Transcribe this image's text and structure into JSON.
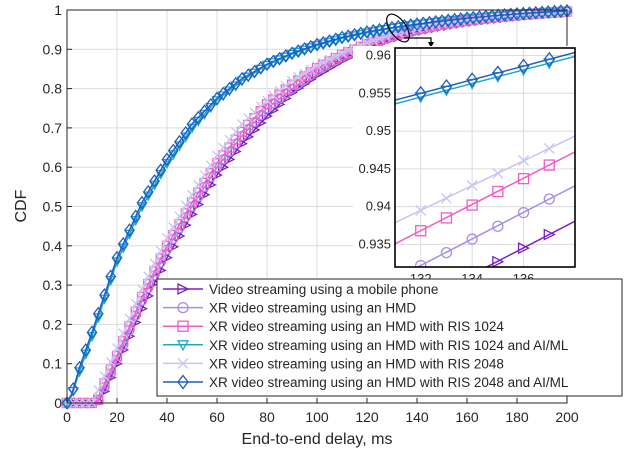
{
  "chart_data": [
    {
      "type": "line",
      "xlabel": "End-to-end delay, ms",
      "ylabel": "CDF",
      "xlim": [
        0,
        200
      ],
      "ylim": [
        0,
        1
      ],
      "xticks": [
        "0",
        "20",
        "40",
        "60",
        "80",
        "100",
        "120",
        "140",
        "160",
        "180",
        "200"
      ],
      "yticks": [
        "0",
        "0.1",
        "0.2",
        "0.3",
        "0.4",
        "0.5",
        "0.6",
        "0.7",
        "0.8",
        "0.9",
        "1"
      ],
      "grid": true,
      "legend_position": "bottom-right",
      "series": [
        {
          "name": "Video streaming using a mobile phone",
          "color": "#7b1fc9",
          "marker": "triangle-right",
          "x": [
            0,
            12,
            15,
            20,
            30,
            40,
            50,
            60,
            70,
            80,
            90,
            100,
            110,
            120,
            130,
            140,
            150,
            160,
            170,
            180,
            190,
            200
          ],
          "y": [
            0,
            0,
            0.03,
            0.1,
            0.24,
            0.37,
            0.48,
            0.58,
            0.66,
            0.73,
            0.79,
            0.835,
            0.872,
            0.903,
            0.927,
            0.945,
            0.958,
            0.969,
            0.977,
            0.984,
            0.99,
            0.994
          ]
        },
        {
          "name": "XR video streaming using an HMD",
          "color": "#a98ee6",
          "marker": "circle",
          "x": [
            0,
            12,
            15,
            20,
            30,
            40,
            50,
            60,
            70,
            80,
            90,
            100,
            110,
            120,
            130,
            140,
            150,
            160,
            170,
            180,
            190,
            200
          ],
          "y": [
            0,
            0,
            0.04,
            0.11,
            0.26,
            0.39,
            0.5,
            0.6,
            0.68,
            0.75,
            0.8,
            0.846,
            0.881,
            0.91,
            0.932,
            0.949,
            0.962,
            0.972,
            0.98,
            0.986,
            0.991,
            0.995
          ]
        },
        {
          "name": "XR video streaming using an HMD with RIS 1024",
          "color": "#f25cc4",
          "marker": "square",
          "x": [
            0,
            12,
            15,
            20,
            30,
            40,
            50,
            60,
            70,
            80,
            90,
            100,
            110,
            120,
            130,
            140,
            150,
            160,
            170,
            180,
            190,
            200
          ],
          "y": [
            0,
            0,
            0.05,
            0.12,
            0.27,
            0.4,
            0.51,
            0.61,
            0.69,
            0.76,
            0.81,
            0.852,
            0.886,
            0.913,
            0.935,
            0.951,
            0.964,
            0.974,
            0.981,
            0.987,
            0.992,
            0.996
          ]
        },
        {
          "name": "XR video streaming using an HMD with RIS 1024 and AI/ML",
          "color": "#1fa8c4",
          "marker": "triangle-down",
          "x": [
            0,
            2,
            5,
            10,
            20,
            30,
            40,
            50,
            60,
            70,
            80,
            90,
            100,
            110,
            120,
            130,
            140,
            150,
            160,
            170,
            180,
            190,
            200
          ],
          "y": [
            0,
            0.02,
            0.08,
            0.17,
            0.36,
            0.5,
            0.61,
            0.7,
            0.77,
            0.82,
            0.86,
            0.888,
            0.91,
            0.928,
            0.942,
            0.954,
            0.963,
            0.971,
            0.978,
            0.984,
            0.989,
            0.993,
            0.997
          ]
        },
        {
          "name": "XR video streaming using an HMD with RIS 2048",
          "color": "#c9c4f2",
          "marker": "x",
          "x": [
            0,
            10,
            13,
            20,
            30,
            40,
            50,
            60,
            70,
            80,
            90,
            100,
            110,
            120,
            130,
            140,
            150,
            160,
            170,
            180,
            190,
            200
          ],
          "y": [
            0,
            0,
            0.04,
            0.14,
            0.29,
            0.42,
            0.53,
            0.63,
            0.71,
            0.77,
            0.82,
            0.858,
            0.89,
            0.917,
            0.938,
            0.953,
            0.966,
            0.975,
            0.982,
            0.988,
            0.992,
            0.996
          ]
        },
        {
          "name": "XR video streaming using an HMD with RIS 2048 and AI/ML",
          "color": "#1f5fc4",
          "marker": "diamond",
          "x": [
            0,
            2,
            5,
            10,
            20,
            30,
            40,
            50,
            60,
            70,
            80,
            90,
            100,
            110,
            120,
            130,
            140,
            150,
            160,
            170,
            180,
            190,
            200
          ],
          "y": [
            0,
            0.025,
            0.09,
            0.18,
            0.37,
            0.51,
            0.62,
            0.71,
            0.775,
            0.825,
            0.862,
            0.89,
            0.912,
            0.93,
            0.944,
            0.955,
            0.964,
            0.972,
            0.979,
            0.985,
            0.99,
            0.994,
            0.998
          ]
        }
      ]
    },
    {
      "type": "line",
      "role": "inset",
      "xlim": [
        131,
        138
      ],
      "ylim": [
        0.932,
        0.961
      ],
      "xticks": [
        "132",
        "134",
        "136"
      ],
      "yticks": [
        "0.935",
        "0.94",
        "0.945",
        "0.95",
        "0.955",
        "0.96"
      ],
      "grid": true,
      "series": [
        {
          "name": "Video streaming using a mobile phone",
          "color": "#7b1fc9",
          "marker": "triangle-right",
          "x": [
            134,
            135,
            136,
            137
          ],
          "y": [
            0.931,
            0.9327,
            0.9345,
            0.9363
          ]
        },
        {
          "name": "XR video streaming using an HMD",
          "color": "#a98ee6",
          "marker": "circle",
          "x": [
            132,
            133,
            134,
            135,
            136,
            137
          ],
          "y": [
            0.9322,
            0.9339,
            0.9357,
            0.9374,
            0.9392,
            0.941
          ]
        },
        {
          "name": "XR video streaming using an HMD with RIS 1024",
          "color": "#f25cc4",
          "marker": "square",
          "x": [
            132,
            133,
            134,
            135,
            136,
            137
          ],
          "y": [
            0.9368,
            0.9385,
            0.9402,
            0.942,
            0.9437,
            0.9455
          ]
        },
        {
          "name": "XR video streaming using an HMD with RIS 1024 and AI/ML",
          "color": "#1fa8c4",
          "marker": "triangle-down",
          "x": [
            132,
            133,
            134,
            135,
            136,
            137
          ],
          "y": [
            0.9545,
            0.9554,
            0.9563,
            0.9572,
            0.9581,
            0.959
          ]
        },
        {
          "name": "XR video streaming using an HMD with RIS 2048",
          "color": "#c9c4f2",
          "marker": "x",
          "x": [
            132,
            133,
            134,
            135,
            136,
            137
          ],
          "y": [
            0.9395,
            0.9411,
            0.9428,
            0.9444,
            0.9461,
            0.9477
          ]
        },
        {
          "name": "XR video streaming using an HMD with RIS 2048 and AI/ML",
          "color": "#1f5fc4",
          "marker": "diamond",
          "x": [
            132,
            133,
            134,
            135,
            136,
            137
          ],
          "y": [
            0.955,
            0.9559,
            0.9568,
            0.9577,
            0.9586,
            0.9595
          ]
        }
      ]
    }
  ]
}
